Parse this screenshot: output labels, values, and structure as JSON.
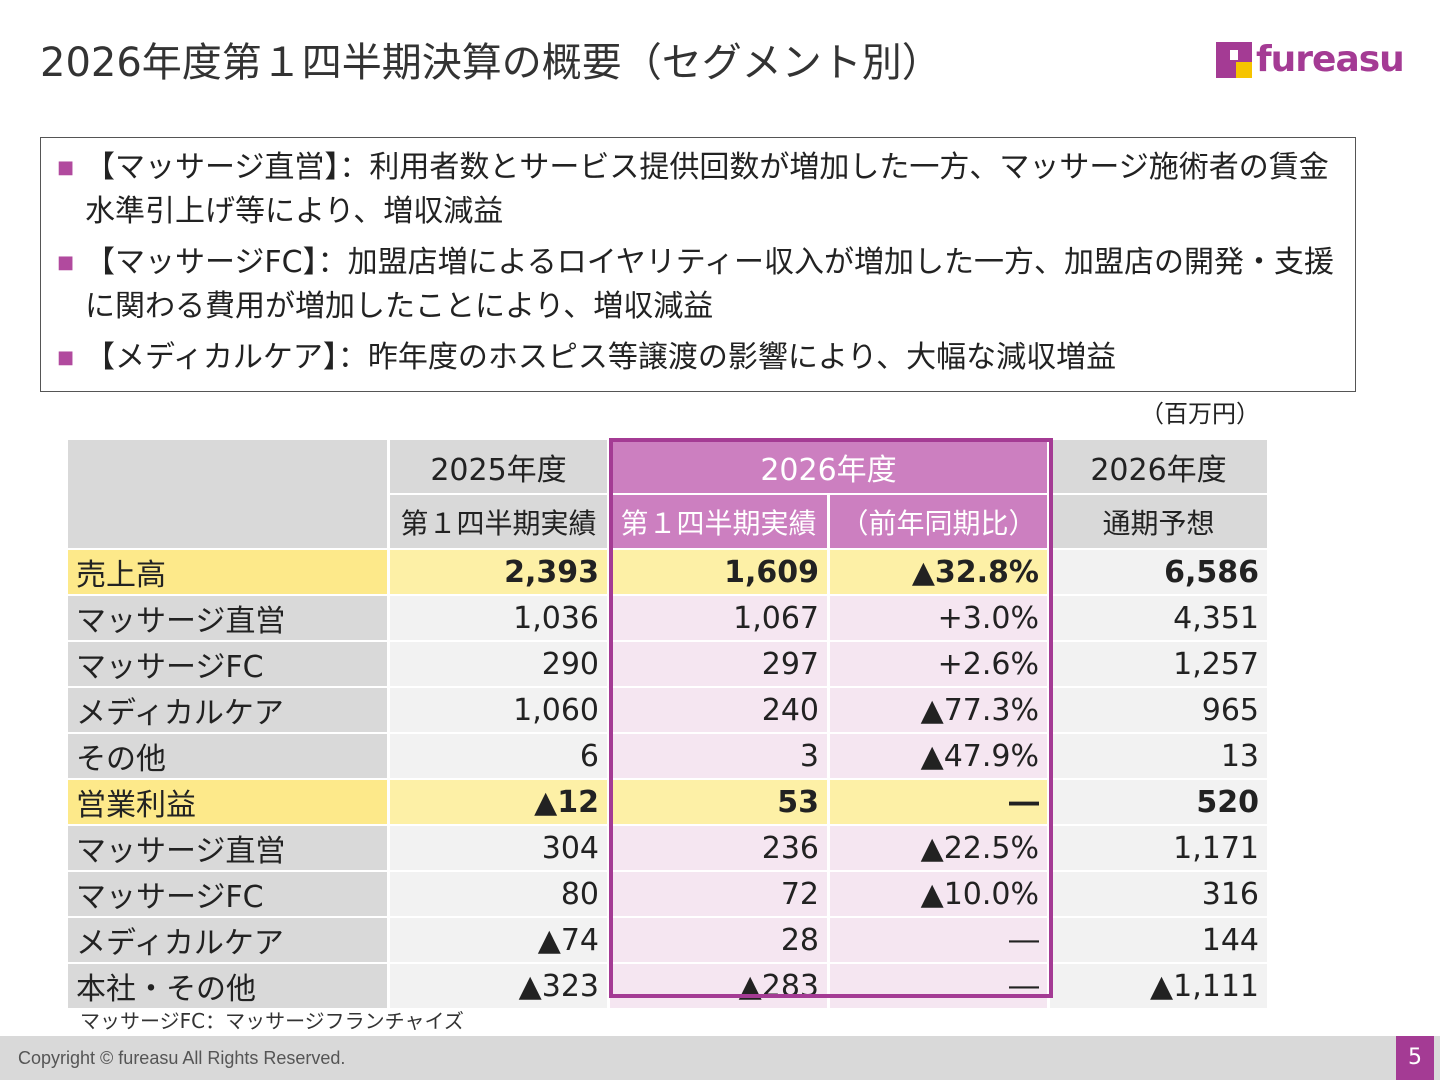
{
  "header": {
    "title": "2026年度第１四半期決算の概要（セグメント別）",
    "logo_text": "fureasu",
    "brand_color": "#a43b94",
    "brand_accent": "#f6c400"
  },
  "summary": {
    "bullets": [
      "【マッサージ直営】：利用者数とサービス提供回数が増加した一方、マッサージ施術者の賃金水準引上げ等により、増収減益",
      "【マッサージFC】：加盟店増によるロイヤリティー収入が増加した一方、加盟店の開発・支援に関わる費用が増加したことにより、増収減益",
      "【メディカルケア】：昨年度のホスピス等譲渡の影響により、大幅な減収増益"
    ]
  },
  "table": {
    "unit": "（百万円）",
    "header_top": [
      "",
      "2025年度",
      "2026年度",
      "2026年度"
    ],
    "header_sub": [
      "",
      "第１四半期実績",
      "第１四半期実績",
      "（前年同期比）",
      "通期予想"
    ],
    "rows": [
      {
        "label": "売上高",
        "fy25q1": "2,393",
        "fy26q1": "1,609",
        "yoy": "▲32.8%",
        "fy26": "6,586",
        "total": true
      },
      {
        "label": "マッサージ直営",
        "fy25q1": "1,036",
        "fy26q1": "1,067",
        "yoy": "+3.0%",
        "fy26": "4,351"
      },
      {
        "label": "マッサージFC",
        "fy25q1": "290",
        "fy26q1": "297",
        "yoy": "+2.6%",
        "fy26": "1,257"
      },
      {
        "label": "メディカルケア",
        "fy25q1": "1,060",
        "fy26q1": "240",
        "yoy": "▲77.3%",
        "fy26": "965"
      },
      {
        "label": "その他",
        "fy25q1": "6",
        "fy26q1": "3",
        "yoy": "▲47.9%",
        "fy26": "13"
      },
      {
        "label": "営業利益",
        "fy25q1": "▲12",
        "fy26q1": "53",
        "yoy": "―",
        "fy26": "520",
        "total": true
      },
      {
        "label": "マッサージ直営",
        "fy25q1": "304",
        "fy26q1": "236",
        "yoy": "▲22.5%",
        "fy26": "1,171"
      },
      {
        "label": "マッサージFC",
        "fy25q1": "80",
        "fy26q1": "72",
        "yoy": "▲10.0%",
        "fy26": "316"
      },
      {
        "label": "メディカルケア",
        "fy25q1": "▲74",
        "fy26q1": "28",
        "yoy": "―",
        "fy26": "144"
      },
      {
        "label": "本社・その他",
        "fy25q1": "▲323",
        "fy26q1": "▲283",
        "yoy": "―",
        "fy26": "▲1,111"
      }
    ]
  },
  "footnote": "マッサージFC：マッサージフランチャイズ",
  "footer": {
    "copyright": "Copyright © fureasu All Rights Reserved.",
    "page_number": "5"
  }
}
